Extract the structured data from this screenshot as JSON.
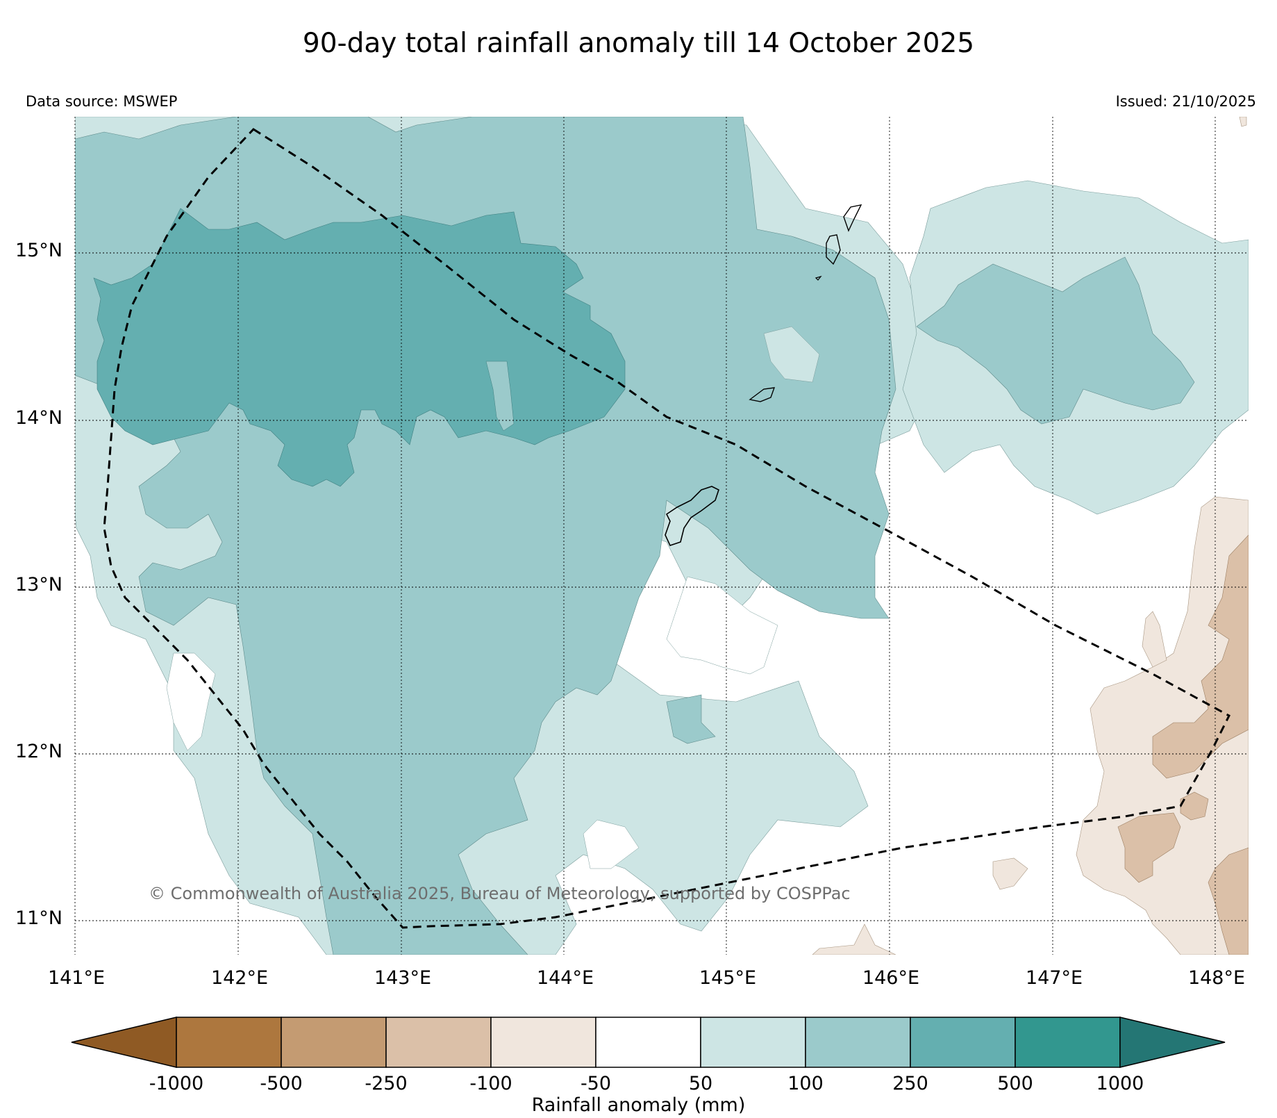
{
  "title": "90-day total rainfall anomaly till 14 October 2025",
  "data_source": "Data source: MSWEP",
  "issued": "Issued: 21/10/2025",
  "copyright": "© Commonwealth of Australia 2025, Bureau of Meteorology, supported by COSPPac",
  "lat_labels": [
    "15°N",
    "14°N",
    "13°N",
    "12°N",
    "11°N"
  ],
  "lon_labels": [
    "141°E",
    "142°E",
    "143°E",
    "144°E",
    "145°E",
    "146°E",
    "147°E",
    "148°E"
  ],
  "colorbar": {
    "title": "Rainfall anomaly (mm)",
    "ticks": [
      "-1000",
      "-500",
      "-250",
      "-100",
      "-50",
      "50",
      "100",
      "250",
      "500",
      "1000"
    ],
    "colors": [
      "#8f5a24",
      "#ad773e",
      "#c49b72",
      "#dbc0a8",
      "#f0e6dd",
      "#ffffff",
      "#cde5e4",
      "#9bcacb",
      "#64afb0",
      "#32978f",
      "#247674"
    ]
  },
  "legend_colors": {
    "anom_50_100": "#cde5e4",
    "anom_100_250": "#9bcacb",
    "anom_250_500": "#64afb0",
    "anom_neg50_neg100": "#f0e6dd",
    "anom_neg100_neg250": "#dbc0a8"
  }
}
